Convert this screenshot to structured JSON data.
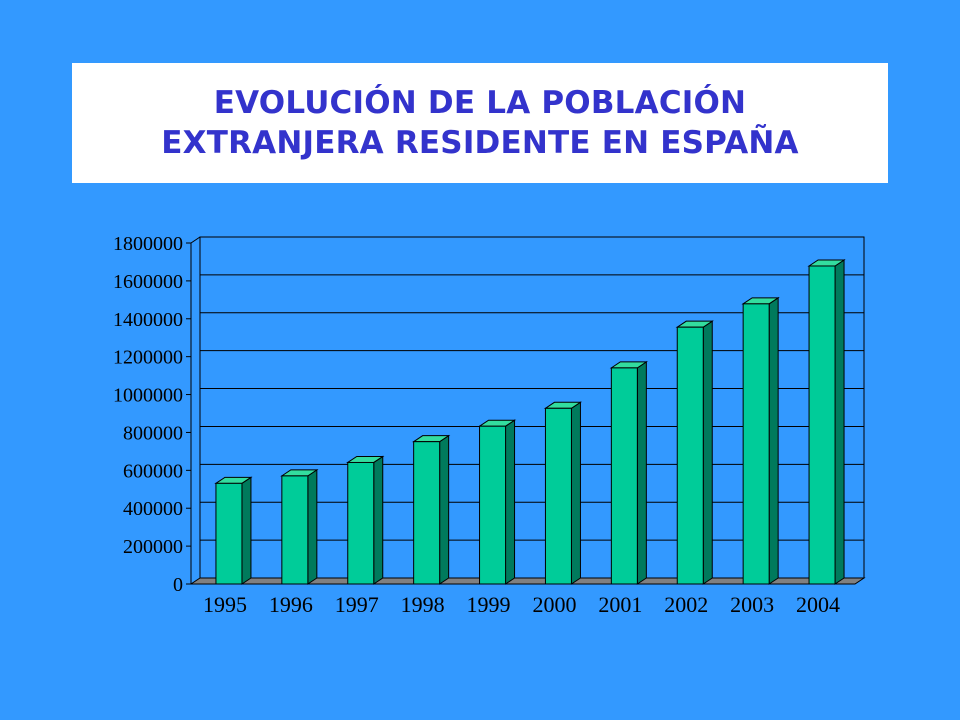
{
  "title_lines": [
    "EVOLUCIÓN DE LA POBLACIÓN",
    "EXTRANJERA RESIDENTE EN ESPAÑA"
  ],
  "colors": {
    "background": "#3399ff",
    "bar_front": "#00cc99",
    "bar_side": "#007a5c",
    "bar_top": "#33dd9f",
    "floor": "#808080",
    "title_text": "#3333cc"
  },
  "chart_data": {
    "type": "bar",
    "style": "3d-column",
    "title": "",
    "xlabel": "",
    "ylabel": "",
    "categories": [
      "1995",
      "1996",
      "1997",
      "1998",
      "1999",
      "2000",
      "2001",
      "2002",
      "2003",
      "2004"
    ],
    "values": [
      499773,
      538984,
      609813,
      719647,
      801329,
      895720,
      1109060,
      1324001,
      1447185,
      1647011
    ],
    "ylim": [
      0,
      1800000
    ],
    "yticks": [
      "0",
      "200000",
      "400000",
      "600000",
      "800000",
      "1000000",
      "1200000",
      "1400000",
      "1600000",
      "1800000"
    ],
    "grid": true,
    "legend": "none"
  }
}
